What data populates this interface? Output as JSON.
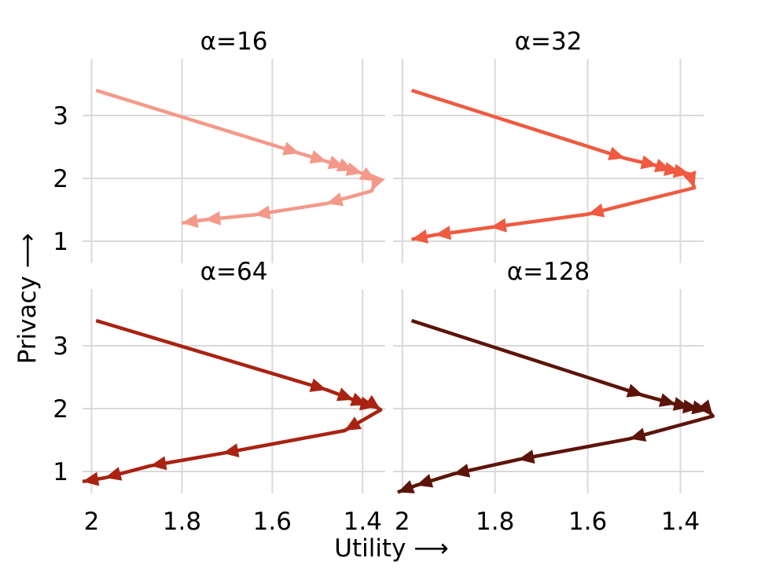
{
  "figure": {
    "xlabel": "Utility ⟶",
    "ylabel": "Privacy ⟶"
  },
  "chart_data": [
    {
      "type": "line",
      "title": "α=16",
      "color": "#f4998a",
      "xlim": [
        2.02,
        1.35
      ],
      "ylim": [
        0.65,
        3.9
      ],
      "xticks": [
        2,
        1.8,
        1.6,
        1.4
      ],
      "xtick_labels": [
        "2",
        "1.8",
        "1.6",
        "1.4"
      ],
      "yticks": [
        1,
        2,
        3
      ],
      "ytick_labels": [
        "1",
        "2",
        "3"
      ],
      "grid": true,
      "x": [
        1.99,
        1.54,
        1.48,
        1.44,
        1.42,
        1.4,
        1.37,
        1.38,
        1.48,
        1.64,
        1.75,
        1.8
      ],
      "y": [
        3.4,
        2.4,
        2.27,
        2.18,
        2.12,
        2.08,
        1.96,
        1.8,
        1.6,
        1.42,
        1.34,
        1.29
      ]
    },
    {
      "type": "line",
      "title": "α=32",
      "color": "#ef5a40",
      "xlim": [
        2.02,
        1.35
      ],
      "ylim": [
        0.65,
        3.9
      ],
      "xticks": [
        2,
        1.8,
        1.6,
        1.4
      ],
      "xtick_labels": [
        "2",
        "1.8",
        "1.6",
        "1.4"
      ],
      "yticks": [
        1,
        2,
        3
      ],
      "ytick_labels": [
        "1",
        "2",
        "3"
      ],
      "grid": true,
      "x": [
        1.98,
        1.52,
        1.45,
        1.42,
        1.4,
        1.38,
        1.37,
        1.6,
        1.81,
        1.93,
        1.98
      ],
      "y": [
        3.4,
        2.32,
        2.2,
        2.13,
        2.1,
        2.07,
        1.85,
        1.43,
        1.22,
        1.1,
        1.03
      ]
    },
    {
      "type": "line",
      "title": "α=64",
      "color": "#a92212",
      "xlim": [
        2.02,
        1.35
      ],
      "ylim": [
        0.65,
        3.9
      ],
      "xticks": [
        2,
        1.8,
        1.6,
        1.4
      ],
      "xtick_labels": [
        "2",
        "1.8",
        "1.6",
        "1.4"
      ],
      "yticks": [
        1,
        2,
        3
      ],
      "ytick_labels": [
        "1",
        "2",
        "3"
      ],
      "grid": true,
      "x": [
        1.99,
        1.48,
        1.42,
        1.39,
        1.37,
        1.36,
        1.44,
        1.71,
        1.87,
        1.97,
        2.02
      ],
      "y": [
        3.4,
        2.3,
        2.14,
        2.06,
        2.03,
        1.98,
        1.65,
        1.29,
        1.09,
        0.9,
        0.84
      ]
    },
    {
      "type": "line",
      "title": "α=128",
      "color": "#5c1409",
      "xlim": [
        2.02,
        1.35
      ],
      "ylim": [
        0.65,
        3.9
      ],
      "xticks": [
        2,
        1.8,
        1.6,
        1.4
      ],
      "xtick_labels": [
        "2",
        "1.8",
        "1.6",
        "1.4"
      ],
      "yticks": [
        1,
        2,
        3
      ],
      "ytick_labels": [
        "1",
        "2",
        "3"
      ],
      "grid": true,
      "x": [
        1.98,
        1.48,
        1.41,
        1.38,
        1.36,
        1.34,
        1.33,
        1.51,
        1.75,
        1.89,
        1.97,
        2.01
      ],
      "y": [
        3.4,
        2.21,
        2.07,
        2.02,
        2.0,
        1.97,
        1.88,
        1.52,
        1.19,
        0.96,
        0.78,
        0.67
      ]
    }
  ]
}
